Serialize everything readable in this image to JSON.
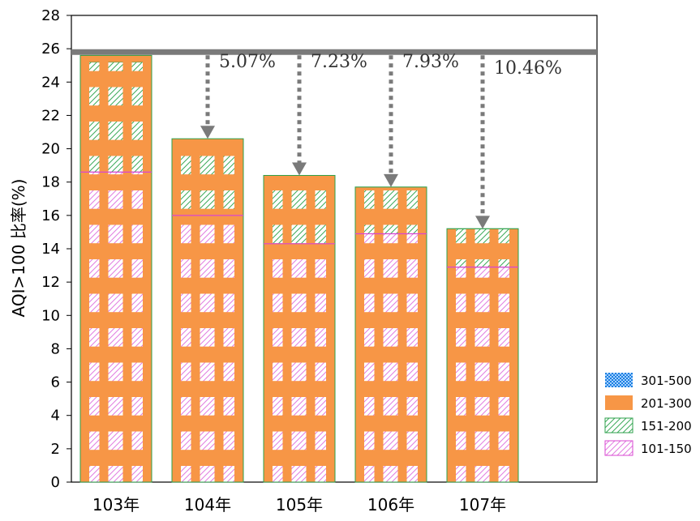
{
  "chart_data": {
    "type": "bar",
    "stacked": true,
    "categories": [
      "103年",
      "104年",
      "105年",
      "106年",
      "107年"
    ],
    "series": [
      {
        "name": "101-150",
        "values": [
          18.6,
          16.0,
          14.3,
          14.9,
          12.9
        ]
      },
      {
        "name": "151-200",
        "values": [
          6.6,
          4.5,
          4.0,
          2.8,
          2.3
        ]
      },
      {
        "name": "201-300",
        "values": [
          0.4,
          0.1,
          0.1,
          0.0,
          0.0
        ]
      },
      {
        "name": "301-500",
        "values": [
          0.0,
          0.0,
          0.0,
          0.0,
          0.0
        ]
      }
    ],
    "ylabel": "AQI>100 比率(%)",
    "xlabel": "",
    "ylim": [
      0,
      28
    ],
    "yticks": [
      0,
      2,
      4,
      6,
      8,
      10,
      12,
      14,
      16,
      18,
      20,
      22,
      24,
      26,
      28
    ],
    "reference_line": 25.8,
    "annotations": [
      {
        "category": "104年",
        "text": "5.07%"
      },
      {
        "category": "105年",
        "text": "7.23%"
      },
      {
        "category": "106年",
        "text": "7.93%"
      },
      {
        "category": "107年",
        "text": "10.46%"
      }
    ],
    "legend": {
      "position": "bottom-right",
      "order": [
        "301-500",
        "201-300",
        "151-200",
        "101-150"
      ]
    },
    "colors": {
      "s301": "#1a7fe0",
      "s201": "#f79646",
      "s151": "#2ea04b",
      "s101": "#d946d2",
      "reference": "#7a7a7a"
    }
  }
}
